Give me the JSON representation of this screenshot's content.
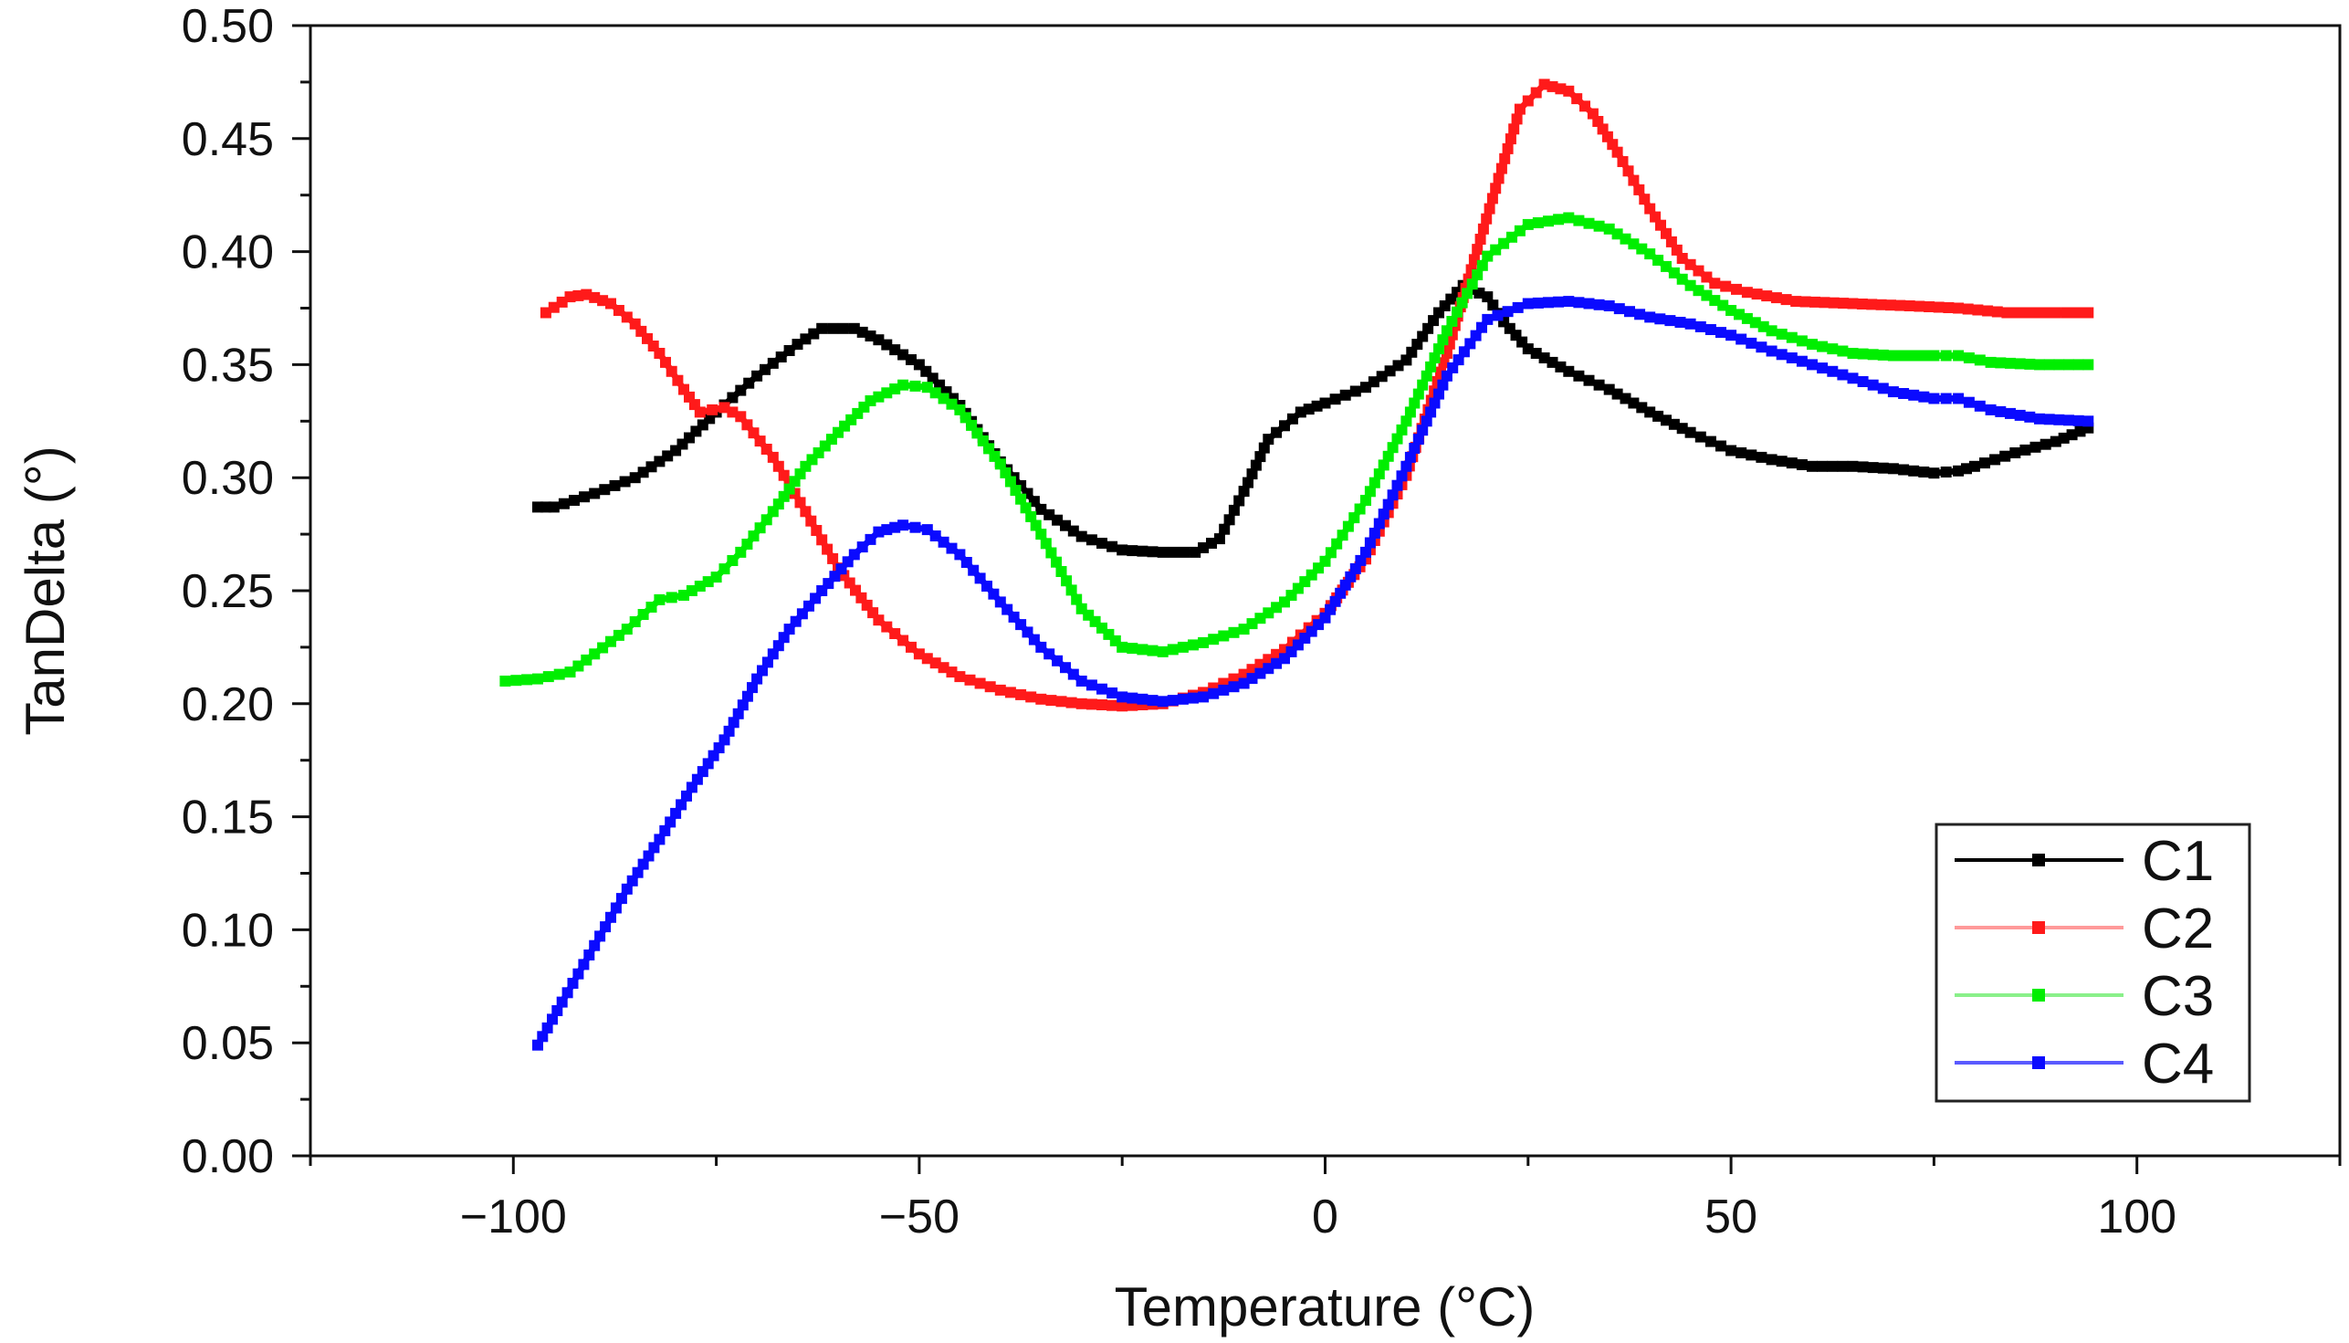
{
  "chart_data": {
    "type": "line",
    "title": "",
    "xlabel": "Temperature (°C)",
    "ylabel": "TanDelta (°)",
    "xlim": [
      -125,
      125
    ],
    "ylim": [
      0,
      0.5
    ],
    "xticks": [
      -100,
      -50,
      0,
      50,
      100
    ],
    "xtick_labels": [
      "−100",
      "−50",
      "0",
      "50",
      "100"
    ],
    "yticks": [
      0,
      0.05,
      0.1,
      0.15,
      0.2,
      0.25,
      0.3,
      0.35,
      0.4,
      0.45,
      0.5
    ],
    "ytick_labels": [
      "0.00",
      "0.05",
      "0.10",
      "0.15",
      "0.20",
      "0.25",
      "0.30",
      "0.35",
      "0.40",
      "0.45",
      "0.50"
    ],
    "grid": false,
    "legend_position": "bottom-right",
    "series": [
      {
        "name": "C1",
        "color": "#000000",
        "points": [
          [
            -97,
            0.287
          ],
          [
            -95,
            0.287
          ],
          [
            -90,
            0.293
          ],
          [
            -85,
            0.3
          ],
          [
            -80,
            0.312
          ],
          [
            -75,
            0.329
          ],
          [
            -70,
            0.345
          ],
          [
            -65,
            0.359
          ],
          [
            -62,
            0.366
          ],
          [
            -58,
            0.366
          ],
          [
            -55,
            0.361
          ],
          [
            -50,
            0.35
          ],
          [
            -45,
            0.332
          ],
          [
            -40,
            0.307
          ],
          [
            -35,
            0.286
          ],
          [
            -30,
            0.274
          ],
          [
            -25,
            0.268
          ],
          [
            -20,
            0.267
          ],
          [
            -16,
            0.267
          ],
          [
            -13,
            0.273
          ],
          [
            -10,
            0.294
          ],
          [
            -7,
            0.317
          ],
          [
            -3,
            0.329
          ],
          [
            0,
            0.333
          ],
          [
            5,
            0.34
          ],
          [
            10,
            0.352
          ],
          [
            14,
            0.373
          ],
          [
            17,
            0.385
          ],
          [
            20,
            0.38
          ],
          [
            22,
            0.369
          ],
          [
            25,
            0.357
          ],
          [
            30,
            0.347
          ],
          [
            35,
            0.339
          ],
          [
            40,
            0.329
          ],
          [
            45,
            0.32
          ],
          [
            50,
            0.312
          ],
          [
            55,
            0.308
          ],
          [
            60,
            0.305
          ],
          [
            65,
            0.305
          ],
          [
            70,
            0.304
          ],
          [
            75,
            0.302
          ],
          [
            78,
            0.303
          ],
          [
            80,
            0.305
          ],
          [
            85,
            0.311
          ],
          [
            90,
            0.316
          ],
          [
            94,
            0.322
          ]
        ]
      },
      {
        "name": "C2",
        "color": "#ff1a1a",
        "points": [
          [
            -96,
            0.373
          ],
          [
            -93,
            0.38
          ],
          [
            -91,
            0.381
          ],
          [
            -88,
            0.377
          ],
          [
            -85,
            0.368
          ],
          [
            -82,
            0.355
          ],
          [
            -79,
            0.339
          ],
          [
            -77,
            0.329
          ],
          [
            -74,
            0.331
          ],
          [
            -72,
            0.327
          ],
          [
            -68,
            0.309
          ],
          [
            -64,
            0.285
          ],
          [
            -60,
            0.26
          ],
          [
            -55,
            0.237
          ],
          [
            -50,
            0.222
          ],
          [
            -45,
            0.212
          ],
          [
            -40,
            0.206
          ],
          [
            -35,
            0.202
          ],
          [
            -30,
            0.2
          ],
          [
            -25,
            0.199
          ],
          [
            -20,
            0.2
          ],
          [
            -15,
            0.205
          ],
          [
            -10,
            0.213
          ],
          [
            -5,
            0.224
          ],
          [
            0,
            0.24
          ],
          [
            5,
            0.264
          ],
          [
            10,
            0.301
          ],
          [
            15,
            0.355
          ],
          [
            18,
            0.392
          ],
          [
            21,
            0.428
          ],
          [
            24,
            0.463
          ],
          [
            27,
            0.474
          ],
          [
            30,
            0.471
          ],
          [
            33,
            0.461
          ],
          [
            36,
            0.444
          ],
          [
            40,
            0.419
          ],
          [
            44,
            0.397
          ],
          [
            48,
            0.386
          ],
          [
            52,
            0.382
          ],
          [
            58,
            0.378
          ],
          [
            65,
            0.377
          ],
          [
            72,
            0.376
          ],
          [
            78,
            0.375
          ],
          [
            84,
            0.373
          ],
          [
            90,
            0.373
          ],
          [
            94,
            0.373
          ]
        ]
      },
      {
        "name": "C3",
        "color": "#00ee00",
        "points": [
          [
            -101,
            0.21
          ],
          [
            -97,
            0.211
          ],
          [
            -93,
            0.214
          ],
          [
            -90,
            0.222
          ],
          [
            -86,
            0.233
          ],
          [
            -82,
            0.246
          ],
          [
            -79,
            0.248
          ],
          [
            -75,
            0.256
          ],
          [
            -72,
            0.267
          ],
          [
            -68,
            0.285
          ],
          [
            -64,
            0.305
          ],
          [
            -60,
            0.32
          ],
          [
            -56,
            0.334
          ],
          [
            -52,
            0.341
          ],
          [
            -49,
            0.34
          ],
          [
            -45,
            0.33
          ],
          [
            -40,
            0.306
          ],
          [
            -35,
            0.275
          ],
          [
            -30,
            0.242
          ],
          [
            -25,
            0.225
          ],
          [
            -20,
            0.223
          ],
          [
            -15,
            0.227
          ],
          [
            -10,
            0.233
          ],
          [
            -5,
            0.245
          ],
          [
            0,
            0.263
          ],
          [
            5,
            0.29
          ],
          [
            10,
            0.325
          ],
          [
            15,
            0.365
          ],
          [
            20,
            0.398
          ],
          [
            25,
            0.412
          ],
          [
            30,
            0.415
          ],
          [
            35,
            0.41
          ],
          [
            40,
            0.399
          ],
          [
            45,
            0.385
          ],
          [
            50,
            0.374
          ],
          [
            55,
            0.365
          ],
          [
            60,
            0.359
          ],
          [
            65,
            0.355
          ],
          [
            70,
            0.354
          ],
          [
            75,
            0.354
          ],
          [
            78,
            0.354
          ],
          [
            82,
            0.351
          ],
          [
            88,
            0.35
          ],
          [
            94,
            0.35
          ]
        ]
      },
      {
        "name": "C4",
        "color": "#0a0aff",
        "points": [
          [
            -97,
            0.049
          ],
          [
            -94,
            0.068
          ],
          [
            -90,
            0.093
          ],
          [
            -86,
            0.118
          ],
          [
            -82,
            0.14
          ],
          [
            -78,
            0.163
          ],
          [
            -74,
            0.184
          ],
          [
            -70,
            0.211
          ],
          [
            -66,
            0.233
          ],
          [
            -62,
            0.25
          ],
          [
            -58,
            0.266
          ],
          [
            -55,
            0.276
          ],
          [
            -52,
            0.279
          ],
          [
            -49,
            0.277
          ],
          [
            -45,
            0.266
          ],
          [
            -40,
            0.245
          ],
          [
            -35,
            0.225
          ],
          [
            -30,
            0.21
          ],
          [
            -25,
            0.203
          ],
          [
            -20,
            0.201
          ],
          [
            -15,
            0.203
          ],
          [
            -10,
            0.209
          ],
          [
            -5,
            0.22
          ],
          [
            0,
            0.238
          ],
          [
            5,
            0.267
          ],
          [
            10,
            0.305
          ],
          [
            15,
            0.345
          ],
          [
            20,
            0.37
          ],
          [
            25,
            0.377
          ],
          [
            30,
            0.378
          ],
          [
            35,
            0.376
          ],
          [
            40,
            0.371
          ],
          [
            45,
            0.368
          ],
          [
            50,
            0.363
          ],
          [
            55,
            0.356
          ],
          [
            60,
            0.35
          ],
          [
            65,
            0.344
          ],
          [
            70,
            0.338
          ],
          [
            75,
            0.335
          ],
          [
            78,
            0.335
          ],
          [
            82,
            0.33
          ],
          [
            88,
            0.326
          ],
          [
            94,
            0.325
          ]
        ]
      }
    ]
  }
}
